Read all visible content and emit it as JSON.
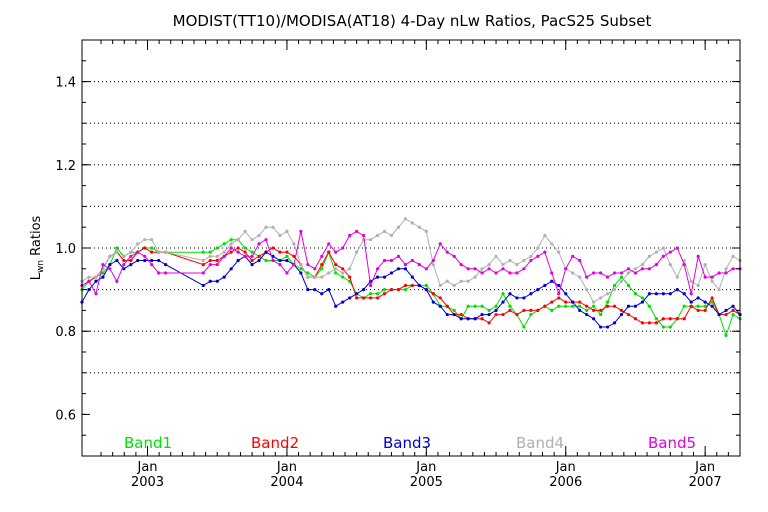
{
  "chart_data": {
    "type": "line",
    "title": "MODIST(TT10)/MODISA(AT18) 4-Day nLw Ratios, PacS25 Subset",
    "ylabel_main": "L",
    "ylabel_sub": "wn",
    "ylabel_rest": " Ratios",
    "xlabel": "",
    "ylim": [
      0.5,
      1.5
    ],
    "xlim": [
      2002.53,
      2007.25
    ],
    "y_ticks": [
      0.6,
      0.8,
      1.0,
      1.2,
      1.4
    ],
    "y_tick_labels": [
      "0.6",
      "0.8",
      "1.0",
      "1.2",
      "1.4"
    ],
    "y_gridlines": [
      0.7,
      0.8,
      0.9,
      1.0,
      1.1,
      1.2,
      1.3,
      1.4
    ],
    "x_ticks": [
      {
        "x": 2003.0,
        "month": "Jan",
        "year": "2003"
      },
      {
        "x": 2004.0,
        "month": "Jan",
        "year": "2004"
      },
      {
        "x": 2005.0,
        "month": "Jan",
        "year": "2005"
      },
      {
        "x": 2006.0,
        "month": "Jan",
        "year": "2006"
      },
      {
        "x": 2007.0,
        "month": "Jan",
        "year": "2007"
      }
    ],
    "legend_placement": "bottom",
    "grid": true,
    "series": [
      {
        "name": "Band1",
        "color": "#00e000",
        "x": [
          2002.53,
          2002.58,
          2002.63,
          2002.68,
          2002.73,
          2002.78,
          2002.83,
          2002.88,
          2002.93,
          2002.98,
          2003.03,
          2003.08,
          2003.13,
          2003.4,
          2003.45,
          2003.5,
          2003.55,
          2003.6,
          2003.65,
          2003.7,
          2003.75,
          2003.8,
          2003.85,
          2003.9,
          2003.95,
          2004.0,
          2004.05,
          2004.1,
          2004.15,
          2004.2,
          2004.25,
          2004.3,
          2004.35,
          2004.4,
          2004.45,
          2004.5,
          2004.55,
          2004.6,
          2004.65,
          2004.7,
          2004.75,
          2004.8,
          2004.85,
          2004.9,
          2004.95,
          2005.0,
          2005.05,
          2005.1,
          2005.15,
          2005.2,
          2005.25,
          2005.3,
          2005.35,
          2005.4,
          2005.45,
          2005.5,
          2005.55,
          2005.6,
          2005.65,
          2005.7,
          2005.75,
          2005.8,
          2005.85,
          2005.9,
          2005.95,
          2006.0,
          2006.05,
          2006.1,
          2006.15,
          2006.2,
          2006.25,
          2006.3,
          2006.35,
          2006.4,
          2006.45,
          2006.5,
          2006.55,
          2006.6,
          2006.65,
          2006.7,
          2006.75,
          2006.8,
          2006.85,
          2006.9,
          2006.95,
          2007.0,
          2007.05,
          2007.1,
          2007.15,
          2007.2,
          2007.25
        ],
        "values": [
          0.9,
          0.92,
          0.93,
          0.94,
          0.96,
          1.0,
          0.98,
          0.99,
          0.99,
          1.0,
          1.0,
          0.99,
          0.99,
          0.99,
          0.99,
          1.0,
          1.01,
          1.02,
          1.02,
          1.0,
          0.99,
          0.98,
          0.97,
          0.97,
          0.97,
          0.98,
          0.96,
          0.95,
          0.94,
          0.93,
          0.95,
          0.99,
          0.94,
          0.93,
          0.92,
          0.89,
          0.88,
          0.89,
          0.89,
          0.9,
          0.9,
          0.9,
          0.9,
          0.91,
          0.91,
          0.91,
          0.89,
          0.86,
          0.86,
          0.85,
          0.83,
          0.86,
          0.86,
          0.86,
          0.85,
          0.86,
          0.89,
          0.86,
          0.84,
          0.81,
          0.84,
          0.85,
          0.86,
          0.85,
          0.86,
          0.86,
          0.86,
          0.86,
          0.85,
          0.86,
          0.84,
          0.87,
          0.91,
          0.93,
          0.91,
          0.89,
          0.88,
          0.86,
          0.83,
          0.81,
          0.81,
          0.83,
          0.86,
          0.86,
          0.86,
          0.86,
          0.87,
          0.84,
          0.79,
          0.84,
          0.83
        ]
      },
      {
        "name": "Band2",
        "color": "#ff0000",
        "x": [
          2002.53,
          2002.58,
          2002.63,
          2002.68,
          2002.73,
          2002.78,
          2002.83,
          2002.88,
          2002.93,
          2002.98,
          2003.03,
          2003.08,
          2003.13,
          2003.4,
          2003.45,
          2003.5,
          2003.55,
          2003.6,
          2003.65,
          2003.7,
          2003.75,
          2003.8,
          2003.85,
          2003.9,
          2003.95,
          2004.0,
          2004.05,
          2004.1,
          2004.15,
          2004.2,
          2004.25,
          2004.3,
          2004.35,
          2004.4,
          2004.45,
          2004.5,
          2004.55,
          2004.6,
          2004.65,
          2004.7,
          2004.75,
          2004.8,
          2004.85,
          2004.9,
          2004.95,
          2005.0,
          2005.05,
          2005.1,
          2005.15,
          2005.2,
          2005.25,
          2005.3,
          2005.35,
          2005.4,
          2005.45,
          2005.5,
          2005.55,
          2005.6,
          2005.65,
          2005.7,
          2005.75,
          2005.8,
          2005.85,
          2005.9,
          2005.95,
          2006.0,
          2006.05,
          2006.1,
          2006.15,
          2006.2,
          2006.25,
          2006.3,
          2006.35,
          2006.4,
          2006.45,
          2006.5,
          2006.55,
          2006.6,
          2006.65,
          2006.7,
          2006.75,
          2006.8,
          2006.85,
          2006.9,
          2006.95,
          2007.0,
          2007.05,
          2007.1,
          2007.15,
          2007.2,
          2007.25
        ],
        "values": [
          0.91,
          0.92,
          0.93,
          0.95,
          0.98,
          0.99,
          0.97,
          0.97,
          0.99,
          1.0,
          0.99,
          0.99,
          0.99,
          0.96,
          0.97,
          0.97,
          0.98,
          0.99,
          1.0,
          0.99,
          0.97,
          0.98,
          0.99,
          1.0,
          0.99,
          0.99,
          0.98,
          0.96,
          0.93,
          0.93,
          0.96,
          0.99,
          0.96,
          0.95,
          0.93,
          0.88,
          0.88,
          0.88,
          0.88,
          0.89,
          0.9,
          0.9,
          0.91,
          0.91,
          0.91,
          0.9,
          0.89,
          0.88,
          0.86,
          0.84,
          0.84,
          0.83,
          0.83,
          0.83,
          0.82,
          0.84,
          0.84,
          0.85,
          0.84,
          0.85,
          0.85,
          0.85,
          0.86,
          0.87,
          0.88,
          0.87,
          0.87,
          0.87,
          0.86,
          0.85,
          0.85,
          0.86,
          0.86,
          0.85,
          0.84,
          0.83,
          0.82,
          0.82,
          0.82,
          0.83,
          0.83,
          0.83,
          0.83,
          0.86,
          0.85,
          0.85,
          0.88,
          0.84,
          0.84,
          0.85,
          0.84
        ]
      },
      {
        "name": "Band3",
        "color": "#0000d0",
        "x": [
          2002.53,
          2002.58,
          2002.63,
          2002.68,
          2002.73,
          2002.78,
          2002.83,
          2002.88,
          2002.93,
          2002.98,
          2003.03,
          2003.08,
          2003.13,
          2003.4,
          2003.45,
          2003.5,
          2003.55,
          2003.6,
          2003.65,
          2003.7,
          2003.75,
          2003.8,
          2003.85,
          2003.9,
          2003.95,
          2004.0,
          2004.05,
          2004.1,
          2004.15,
          2004.2,
          2004.25,
          2004.3,
          2004.35,
          2004.4,
          2004.45,
          2004.5,
          2004.55,
          2004.6,
          2004.65,
          2004.7,
          2004.75,
          2004.8,
          2004.85,
          2004.9,
          2004.95,
          2005.0,
          2005.05,
          2005.1,
          2005.15,
          2005.2,
          2005.25,
          2005.3,
          2005.35,
          2005.4,
          2005.45,
          2005.5,
          2005.55,
          2005.6,
          2005.65,
          2005.7,
          2005.75,
          2005.8,
          2005.85,
          2005.9,
          2005.95,
          2006.0,
          2006.05,
          2006.1,
          2006.15,
          2006.2,
          2006.25,
          2006.3,
          2006.35,
          2006.4,
          2006.45,
          2006.5,
          2006.55,
          2006.6,
          2006.65,
          2006.7,
          2006.75,
          2006.8,
          2006.85,
          2006.9,
          2006.95,
          2007.0,
          2007.05,
          2007.1,
          2007.15,
          2007.2,
          2007.25
        ],
        "values": [
          0.87,
          0.9,
          0.92,
          0.93,
          0.96,
          0.97,
          0.95,
          0.96,
          0.97,
          0.97,
          0.97,
          0.97,
          0.96,
          0.91,
          0.92,
          0.92,
          0.93,
          0.95,
          0.97,
          0.98,
          0.96,
          0.97,
          0.99,
          0.98,
          0.97,
          0.97,
          0.96,
          0.94,
          0.9,
          0.9,
          0.89,
          0.9,
          0.86,
          0.87,
          0.88,
          0.89,
          0.9,
          0.92,
          0.93,
          0.93,
          0.94,
          0.95,
          0.95,
          0.93,
          0.91,
          0.9,
          0.87,
          0.86,
          0.84,
          0.84,
          0.83,
          0.83,
          0.83,
          0.84,
          0.84,
          0.85,
          0.87,
          0.89,
          0.88,
          0.88,
          0.89,
          0.9,
          0.91,
          0.92,
          0.91,
          0.89,
          0.87,
          0.85,
          0.84,
          0.83,
          0.81,
          0.81,
          0.82,
          0.84,
          0.86,
          0.86,
          0.87,
          0.89,
          0.89,
          0.89,
          0.89,
          0.9,
          0.89,
          0.87,
          0.88,
          0.87,
          0.86,
          0.84,
          0.85,
          0.86,
          0.84
        ]
      },
      {
        "name": "Band4",
        "color": "#b0b0b0",
        "x": [
          2002.53,
          2002.58,
          2002.63,
          2002.68,
          2002.73,
          2002.78,
          2002.83,
          2002.88,
          2002.93,
          2002.98,
          2003.03,
          2003.08,
          2003.13,
          2003.4,
          2003.45,
          2003.5,
          2003.55,
          2003.6,
          2003.65,
          2003.7,
          2003.75,
          2003.8,
          2003.85,
          2003.9,
          2003.95,
          2004.0,
          2004.05,
          2004.1,
          2004.15,
          2004.2,
          2004.25,
          2004.3,
          2004.35,
          2004.4,
          2004.45,
          2004.5,
          2004.55,
          2004.6,
          2004.65,
          2004.7,
          2004.75,
          2004.8,
          2004.85,
          2004.9,
          2004.95,
          2005.0,
          2005.05,
          2005.1,
          2005.15,
          2005.2,
          2005.25,
          2005.3,
          2005.35,
          2005.4,
          2005.45,
          2005.5,
          2005.55,
          2005.6,
          2005.65,
          2005.7,
          2005.75,
          2005.8,
          2005.85,
          2005.9,
          2005.95,
          2006.0,
          2006.05,
          2006.1,
          2006.15,
          2006.2,
          2006.25,
          2006.3,
          2006.35,
          2006.4,
          2006.45,
          2006.5,
          2006.55,
          2006.6,
          2006.65,
          2006.7,
          2006.75,
          2006.8,
          2006.85,
          2006.9,
          2006.95,
          2007.0,
          2007.05,
          2007.1,
          2007.15,
          2007.2,
          2007.25
        ],
        "values": [
          0.92,
          0.93,
          0.93,
          0.95,
          0.98,
          0.99,
          0.98,
          0.99,
          1.01,
          1.02,
          1.02,
          0.99,
          0.99,
          0.97,
          0.98,
          0.98,
          0.99,
          1.01,
          1.02,
          1.04,
          1.02,
          1.03,
          1.05,
          1.05,
          1.03,
          1.04,
          1.01,
          0.96,
          0.93,
          0.93,
          0.93,
          0.94,
          0.95,
          0.94,
          0.95,
          0.99,
          1.02,
          1.02,
          1.03,
          1.04,
          1.03,
          1.05,
          1.07,
          1.06,
          1.05,
          1.04,
          0.96,
          0.91,
          0.92,
          0.91,
          0.92,
          0.92,
          0.93,
          0.95,
          0.96,
          0.98,
          0.96,
          0.97,
          0.96,
          0.97,
          0.98,
          1.0,
          1.03,
          1.01,
          0.99,
          0.95,
          0.94,
          0.93,
          0.9,
          0.87,
          0.88,
          0.89,
          0.9,
          0.92,
          0.94,
          0.95,
          0.96,
          0.98,
          0.99,
          1.0,
          0.96,
          0.93,
          0.97,
          0.92,
          0.91,
          0.96,
          0.92,
          0.9,
          0.95,
          0.98,
          0.97
        ]
      },
      {
        "name": "Band5",
        "color": "#e000e0",
        "x": [
          2002.53,
          2002.58,
          2002.63,
          2002.68,
          2002.73,
          2002.78,
          2002.83,
          2002.88,
          2002.93,
          2002.98,
          2003.03,
          2003.08,
          2003.13,
          2003.4,
          2003.45,
          2003.5,
          2003.55,
          2003.6,
          2003.65,
          2003.7,
          2003.75,
          2003.8,
          2003.85,
          2003.9,
          2003.95,
          2004.0,
          2004.05,
          2004.1,
          2004.15,
          2004.2,
          2004.25,
          2004.3,
          2004.35,
          2004.4,
          2004.45,
          2004.5,
          2004.55,
          2004.6,
          2004.65,
          2004.7,
          2004.75,
          2004.8,
          2004.85,
          2004.9,
          2004.95,
          2005.0,
          2005.05,
          2005.1,
          2005.15,
          2005.2,
          2005.25,
          2005.3,
          2005.35,
          2005.4,
          2005.45,
          2005.5,
          2005.55,
          2005.6,
          2005.65,
          2005.7,
          2005.75,
          2005.8,
          2005.85,
          2005.9,
          2005.95,
          2006.0,
          2006.05,
          2006.1,
          2006.15,
          2006.2,
          2006.25,
          2006.3,
          2006.35,
          2006.4,
          2006.45,
          2006.5,
          2006.55,
          2006.6,
          2006.65,
          2006.7,
          2006.75,
          2006.8,
          2006.85,
          2006.9,
          2006.95,
          2007.0,
          2007.05,
          2007.1,
          2007.15,
          2007.2,
          2007.25
        ],
        "values": [
          0.91,
          0.92,
          0.89,
          0.96,
          0.95,
          0.92,
          0.96,
          0.98,
          0.99,
          0.98,
          0.96,
          0.94,
          0.94,
          0.94,
          0.96,
          0.96,
          0.98,
          1.0,
          0.99,
          0.98,
          0.98,
          1.01,
          1.02,
          0.97,
          0.96,
          0.94,
          0.96,
          1.04,
          0.96,
          0.95,
          0.98,
          1.01,
          0.99,
          1.0,
          1.03,
          1.04,
          1.03,
          0.91,
          0.95,
          0.97,
          0.97,
          0.98,
          0.96,
          0.97,
          0.96,
          0.95,
          0.97,
          1.01,
          0.99,
          0.98,
          0.96,
          0.95,
          0.95,
          0.94,
          0.95,
          0.94,
          0.95,
          0.94,
          0.94,
          0.95,
          0.97,
          0.98,
          0.99,
          0.94,
          0.89,
          0.95,
          0.98,
          0.97,
          0.93,
          0.94,
          0.94,
          0.93,
          0.94,
          0.94,
          0.95,
          0.94,
          0.95,
          0.95,
          0.96,
          0.98,
          0.99,
          1.0,
          0.96,
          0.89,
          0.98,
          0.93,
          0.93,
          0.94,
          0.94,
          0.95,
          0.95
        ]
      }
    ]
  }
}
